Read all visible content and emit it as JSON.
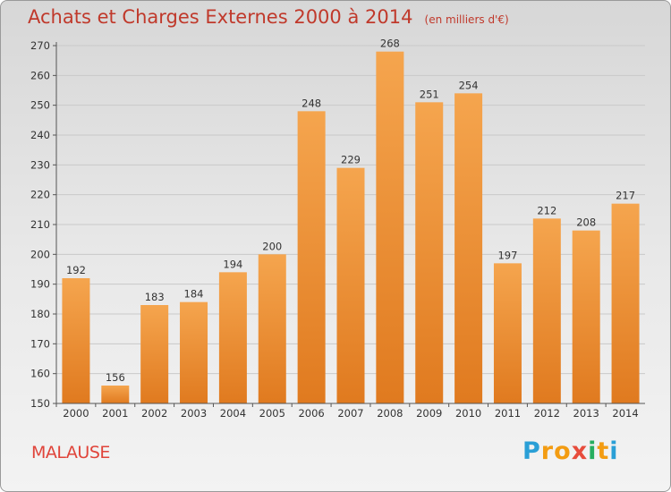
{
  "chart_data": {
    "type": "bar",
    "title": "Achats et Charges Externes 2000 à 2014",
    "unit_note": "(en milliers d'€)",
    "categories": [
      "2000",
      "2001",
      "2002",
      "2003",
      "2004",
      "2005",
      "2006",
      "2007",
      "2008",
      "2009",
      "2010",
      "2011",
      "2012",
      "2013",
      "2014"
    ],
    "values": [
      192,
      156,
      183,
      184,
      194,
      200,
      248,
      229,
      268,
      251,
      254,
      197,
      212,
      208,
      217
    ],
    "ylim": [
      150,
      270
    ],
    "yticks": [
      150,
      160,
      170,
      180,
      190,
      200,
      210,
      220,
      230,
      240,
      250,
      260,
      270
    ],
    "grid": true,
    "legend": "none",
    "bar_color_top": "#f5a54e",
    "bar_color_bottom": "#e07a1f"
  },
  "location": "MALAUSE",
  "logo": {
    "letters": [
      "P",
      "r",
      "o",
      "x",
      "i",
      "t",
      "i"
    ],
    "colors": [
      "#2a9fd6",
      "#f39c12",
      "#f39c12",
      "#e74c3c",
      "#27ae60",
      "#f39c12",
      "#2a9fd6"
    ]
  }
}
